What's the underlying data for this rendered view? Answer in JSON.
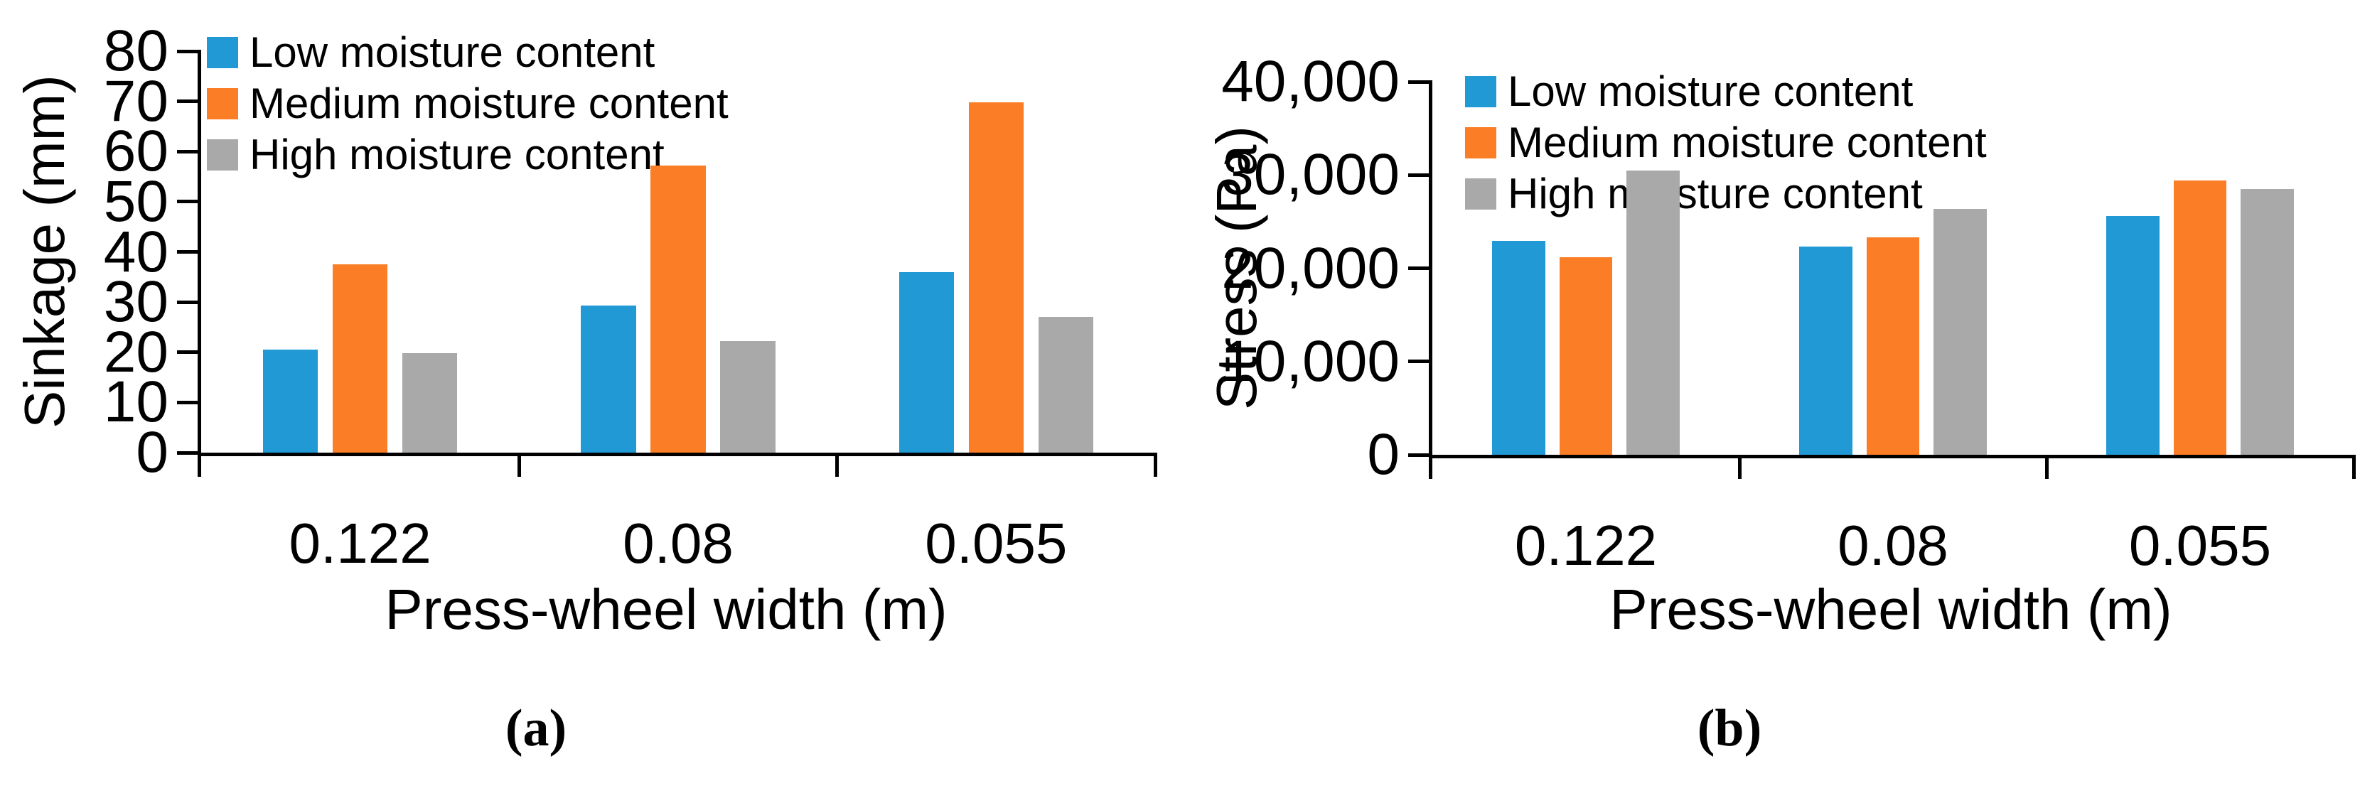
{
  "chart_data": [
    {
      "type": "bar",
      "panel": "a",
      "caption": "(a)",
      "title": "",
      "xlabel": "Press-wheel width (m)",
      "ylabel": "Sinkage (mm)",
      "categories": [
        "0.122",
        "0.08",
        "0.055"
      ],
      "series": [
        {
          "name": "Low moisture content",
          "color": "#2199d5",
          "values": [
            20.5,
            29.3,
            36.0
          ]
        },
        {
          "name": "Medium moisture content",
          "color": "#fb7d25",
          "values": [
            37.5,
            57.2,
            69.8
          ]
        },
        {
          "name": "High moisture content",
          "color": "#a9a9a9",
          "values": [
            19.8,
            22.3,
            27.0
          ]
        }
      ],
      "ylim": [
        0,
        80
      ],
      "yticks": [
        {
          "value": 0,
          "label": "0"
        },
        {
          "value": 10,
          "label": "10"
        },
        {
          "value": 20,
          "label": "20"
        },
        {
          "value": 30,
          "label": "30"
        },
        {
          "value": 40,
          "label": "40"
        },
        {
          "value": 50,
          "label": "50"
        },
        {
          "value": 60,
          "label": "60"
        },
        {
          "value": 70,
          "label": "70"
        },
        {
          "value": 80,
          "label": "80"
        }
      ],
      "grid": false,
      "legend_position": "top-left-inside"
    },
    {
      "type": "bar",
      "panel": "b",
      "caption": "(b)",
      "title": "",
      "xlabel": "Press-wheel width (m)",
      "ylabel": "Stress (Pa)",
      "categories": [
        "0.122",
        "0.08",
        "0.055"
      ],
      "series": [
        {
          "name": "Low moisture content",
          "color": "#2199d5",
          "values": [
            22900,
            22300,
            25600
          ]
        },
        {
          "name": "Medium moisture content",
          "color": "#fb7d25",
          "values": [
            21200,
            23300,
            29400
          ]
        },
        {
          "name": "High moisture content",
          "color": "#a9a9a9",
          "values": [
            30500,
            26400,
            28500
          ]
        }
      ],
      "ylim": [
        0,
        40000
      ],
      "yticks": [
        {
          "value": 0,
          "label": "0"
        },
        {
          "value": 10000,
          "label": "10,000"
        },
        {
          "value": 20000,
          "label": "20,000"
        },
        {
          "value": 30000,
          "label": "30,000"
        },
        {
          "value": 40000,
          "label": "40,000"
        }
      ],
      "grid": false,
      "legend_position": "top-left-inside"
    }
  ]
}
